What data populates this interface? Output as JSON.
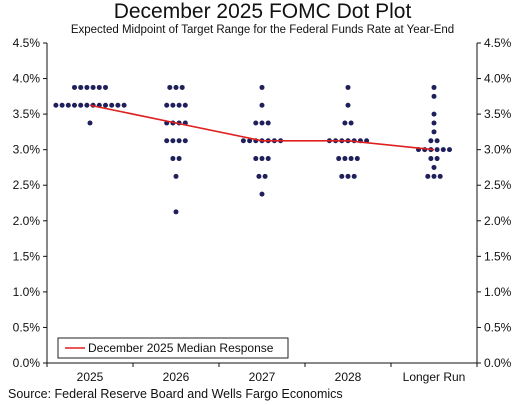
{
  "chart_data": {
    "type": "scatter",
    "title": "December 2025 FOMC Dot Plot",
    "subtitle": "Expected Midpoint of Target Range for the Federal Funds Rate at Year-End",
    "source": "Source: Federal Reserve Board and Wells Fargo Economics",
    "categories": [
      "2025",
      "2026",
      "2027",
      "2028",
      "Longer Run"
    ],
    "ylim": [
      0,
      4.5
    ],
    "yticks": [
      "0.0%",
      "0.5%",
      "1.0%",
      "1.5%",
      "2.0%",
      "2.5%",
      "3.0%",
      "3.5%",
      "4.0%",
      "4.5%"
    ],
    "grid": false,
    "dots": [
      {
        "category": "2025",
        "levels": [
          {
            "y": 3.875,
            "count": 6
          },
          {
            "y": 3.625,
            "count": 12
          },
          {
            "y": 3.375,
            "count": 1
          }
        ]
      },
      {
        "category": "2026",
        "levels": [
          {
            "y": 3.875,
            "count": 3
          },
          {
            "y": 3.625,
            "count": 4
          },
          {
            "y": 3.375,
            "count": 4
          },
          {
            "y": 3.125,
            "count": 4
          },
          {
            "y": 2.875,
            "count": 2
          },
          {
            "y": 2.625,
            "count": 1
          },
          {
            "y": 2.125,
            "count": 1
          }
        ]
      },
      {
        "category": "2027",
        "levels": [
          {
            "y": 3.875,
            "count": 1
          },
          {
            "y": 3.625,
            "count": 1
          },
          {
            "y": 3.375,
            "count": 3
          },
          {
            "y": 3.125,
            "count": 7
          },
          {
            "y": 2.875,
            "count": 3
          },
          {
            "y": 2.625,
            "count": 2
          },
          {
            "y": 2.375,
            "count": 1
          }
        ]
      },
      {
        "category": "2028",
        "levels": [
          {
            "y": 3.875,
            "count": 1
          },
          {
            "y": 3.625,
            "count": 1
          },
          {
            "y": 3.375,
            "count": 2
          },
          {
            "y": 3.125,
            "count": 7
          },
          {
            "y": 2.875,
            "count": 4
          },
          {
            "y": 2.625,
            "count": 3
          }
        ]
      },
      {
        "category": "Longer Run",
        "levels": [
          {
            "y": 3.875,
            "count": 1
          },
          {
            "y": 3.75,
            "count": 1
          },
          {
            "y": 3.5,
            "count": 1
          },
          {
            "y": 3.375,
            "count": 1
          },
          {
            "y": 3.25,
            "count": 1
          },
          {
            "y": 3.125,
            "count": 2
          },
          {
            "y": 3.0,
            "count": 6
          },
          {
            "y": 2.875,
            "count": 2
          },
          {
            "y": 2.75,
            "count": 1
          },
          {
            "y": 2.625,
            "count": 3
          }
        ]
      }
    ],
    "series": [
      {
        "name": "December 2025 Median Response",
        "values": [
          3.625,
          3.375,
          3.125,
          3.125,
          3.0
        ]
      }
    ],
    "legend_position": "bottom-left",
    "colors": {
      "dot": "#1f1f5c",
      "median_line": "#e02020",
      "axis": "#111111"
    }
  }
}
